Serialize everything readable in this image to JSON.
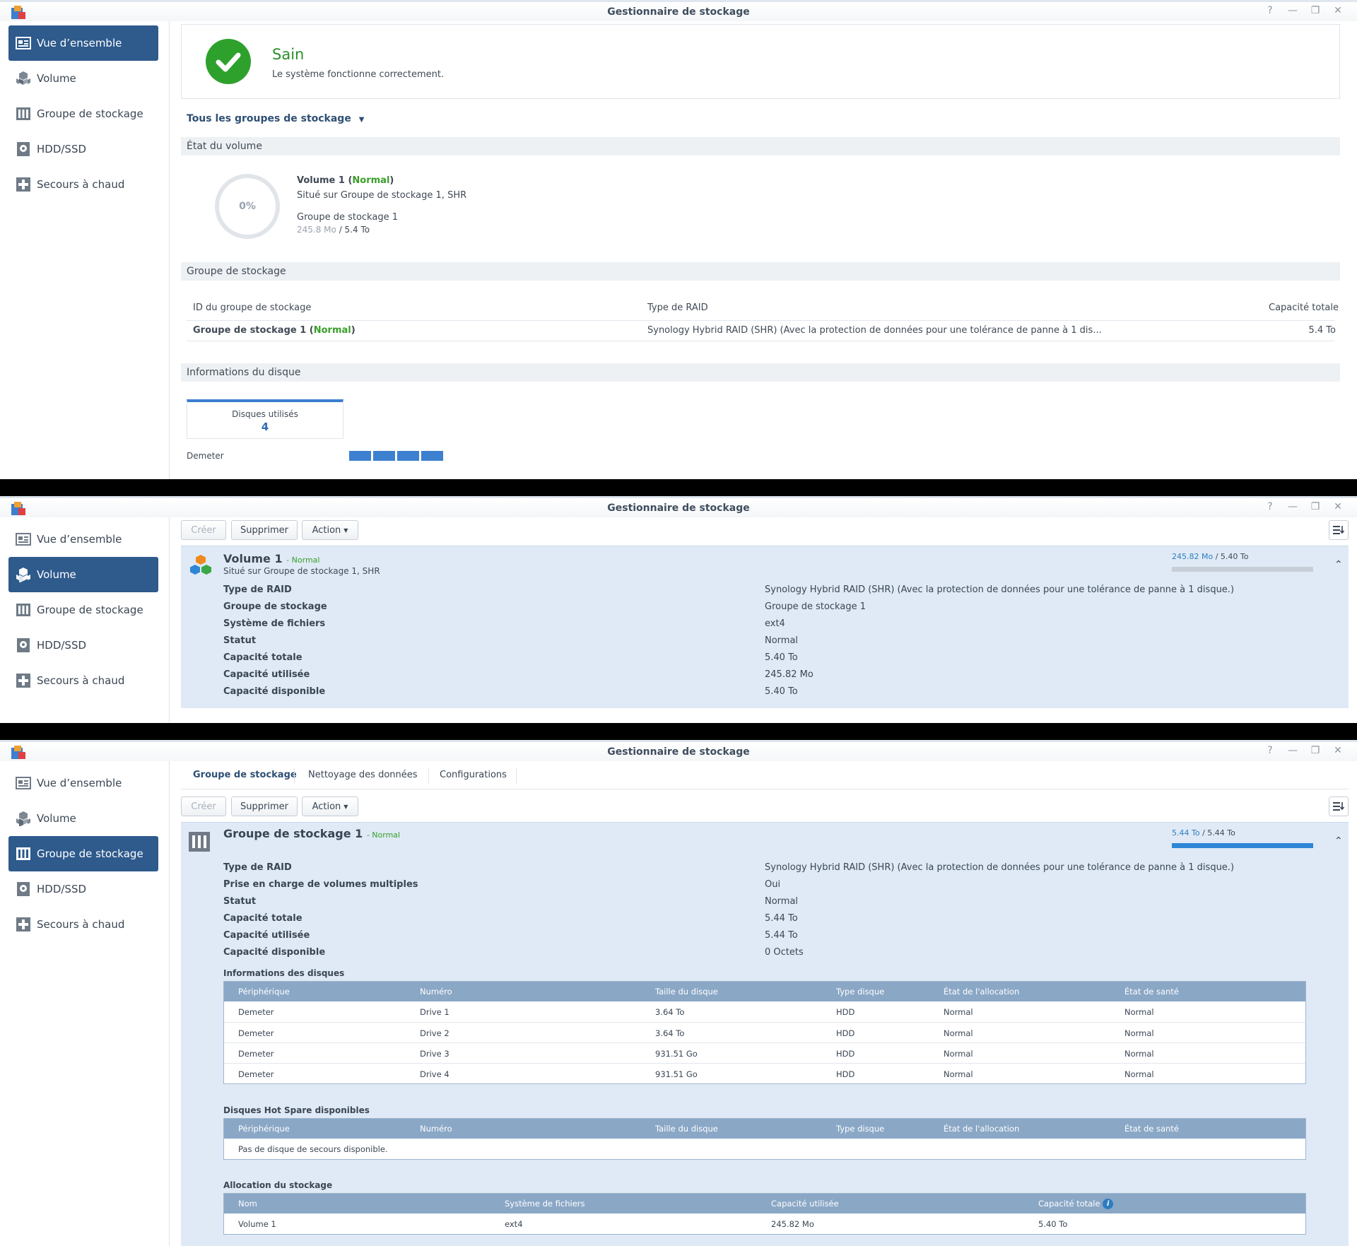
{
  "app_title": "Gestionnaire de stockage",
  "window_controls": [
    "help-icon",
    "minimize-icon",
    "restore-icon",
    "close-icon"
  ],
  "nav": [
    "Vue d’ensemble",
    "Volume",
    "Groupe de stockage",
    "HDD/SSD",
    "Secours à chaud"
  ],
  "overview": {
    "health_title": "Sain",
    "health_desc": "Le système fonctionne correctement.",
    "pool_filter": "Tous les groupes de stockage",
    "volume_state_header": "État du volume",
    "donut_label": "0%",
    "volume_name": "Volume 1",
    "volume_status": "Normal",
    "volume_location": "Situé sur Groupe de stockage 1, SHR",
    "volume_pool": "Groupe de stockage 1",
    "volume_used": "245.8 Mo",
    "volume_total": "5.4 To",
    "pool_header": "Groupe de stockage",
    "pool_table_headers": [
      "ID du groupe de stockage",
      "Type de RAID",
      "Capacité totale"
    ],
    "pool_row_name": "Groupe de stockage 1",
    "pool_row_status": "Normal",
    "pool_row_raid": "Synology Hybrid RAID (SHR) (Avec la protection de données pour une tolérance de panne à 1 dis...",
    "pool_row_capacity": "5.4 To",
    "disk_info_header": "Informations du disque",
    "disks_used_label": "Disques utilisés",
    "disks_used_count": "4",
    "device_name": "Demeter"
  },
  "toolbar": {
    "create": "Créer",
    "delete": "Supprimer",
    "action": "Action"
  },
  "volume_panel": {
    "title": "Volume 1",
    "status": "Normal",
    "location": "Situé sur Groupe de stockage 1, SHR",
    "usage_used": "245.82 Mo",
    "usage_total": "5.40 To",
    "usage_fraction": 0.0,
    "rows": [
      {
        "label": "Type de RAID",
        "value": "Synology Hybrid RAID (SHR) (Avec la protection de données pour une tolérance de panne à 1 disque.)"
      },
      {
        "label": "Groupe de stockage",
        "value": "Groupe de stockage 1"
      },
      {
        "label": "Système de fichiers",
        "value": "ext4"
      },
      {
        "label": "Statut",
        "value": "Normal"
      },
      {
        "label": "Capacité totale",
        "value": "5.40 To"
      },
      {
        "label": "Capacité utilisée",
        "value": "245.82 Mo"
      },
      {
        "label": "Capacité disponible",
        "value": "5.40 To"
      }
    ]
  },
  "pool_tabs": [
    "Groupe de stockage",
    "Nettoyage des données",
    "Configurations"
  ],
  "pool_panel": {
    "title": "Groupe de stockage 1",
    "status": "Normal",
    "usage_used": "5.44 To",
    "usage_total": "5.44 To",
    "usage_fraction": 1.0,
    "rows": [
      {
        "label": "Type de RAID",
        "value": "Synology Hybrid RAID (SHR) (Avec la protection de données pour une tolérance de panne à 1 disque.)"
      },
      {
        "label": "Prise en charge de volumes multiples",
        "value": "Oui"
      },
      {
        "label": "Statut",
        "value": "Normal"
      },
      {
        "label": "Capacité totale",
        "value": "5.44 To"
      },
      {
        "label": "Capacité utilisée",
        "value": "5.44 To"
      },
      {
        "label": "Capacité disponible",
        "value": "0 Octets"
      }
    ],
    "disks_title": "Informations des disques",
    "disk_headers": [
      "Périphérique",
      "Numéro",
      "Taille du disque",
      "Type disque",
      "État de l'allocation",
      "État de santé"
    ],
    "disks": [
      [
        "Demeter",
        "Drive 1",
        "3.64 To",
        "HDD",
        "Normal",
        "Normal"
      ],
      [
        "Demeter",
        "Drive 2",
        "3.64 To",
        "HDD",
        "Normal",
        "Normal"
      ],
      [
        "Demeter",
        "Drive 3",
        "931.51 Go",
        "HDD",
        "Normal",
        "Normal"
      ],
      [
        "Demeter",
        "Drive 4",
        "931.51 Go",
        "HDD",
        "Normal",
        "Normal"
      ]
    ],
    "hotspare_title": "Disques Hot Spare disponibles",
    "hotspare_empty": "Pas de disque de secours disponible.",
    "alloc_title": "Allocation du stockage",
    "alloc_headers": [
      "Nom",
      "Système de fichiers",
      "Capacité utilisée",
      "Capacité totale"
    ],
    "alloc_row": [
      "Volume 1",
      "ext4",
      "245.82 Mo",
      "5.40 To"
    ]
  },
  "colors": {
    "accent": "#2e5a8c",
    "healthy": "#2ea12d",
    "table_header": "#8aa7c6",
    "panel": "#dfeaf6"
  }
}
